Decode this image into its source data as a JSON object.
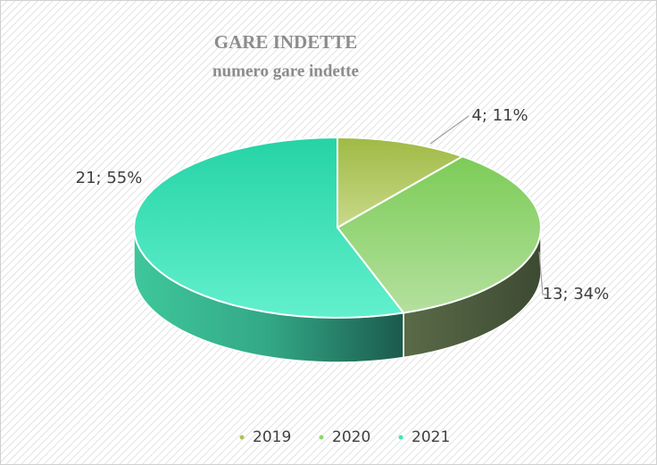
{
  "chart_data": {
    "type": "pie3d",
    "title": "GARE INDETTE",
    "subtitle": "numero gare indette",
    "categories": [
      "2019",
      "2020",
      "2021"
    ],
    "values": [
      4,
      13,
      21
    ],
    "value_labels": [
      "4; 11%",
      "13; 34%",
      "21; 55%"
    ],
    "colors": [
      "#a9c452",
      "#8ed46f",
      "#3fe6b9"
    ],
    "legend": "bottom"
  }
}
